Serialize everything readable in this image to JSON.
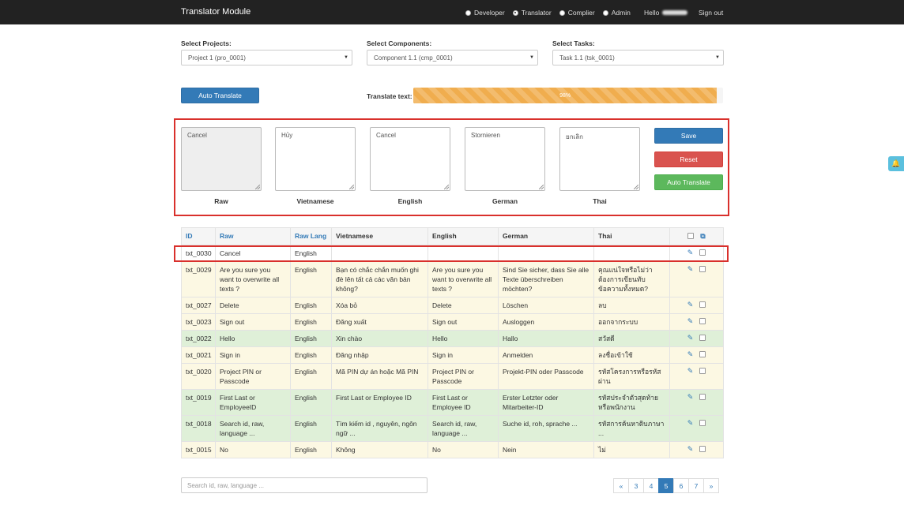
{
  "navbar": {
    "brand": "Translator Module",
    "roles": [
      {
        "label": "Developer",
        "selected": false
      },
      {
        "label": "Translator",
        "selected": true
      },
      {
        "label": "Complier",
        "selected": false
      },
      {
        "label": "Admin",
        "selected": false
      }
    ],
    "hello": "Hello",
    "signout": "Sign out"
  },
  "selects": {
    "projects": {
      "label": "Select Projects:",
      "value": "Project 1 (pro_0001)"
    },
    "components": {
      "label": "Select Components:",
      "value": "Component 1.1 (cmp_0001)"
    },
    "tasks": {
      "label": "Select Tasks:",
      "value": "Task 1.1 (tsk_0001)"
    }
  },
  "toolbar": {
    "auto_translate": "Auto Translate",
    "translate_text_label": "Translate text:",
    "progress_percent": 98,
    "progress_text": "98%"
  },
  "editor": {
    "fields": [
      {
        "name": "raw",
        "label": "Raw",
        "value": "Cancel"
      },
      {
        "name": "vietnamese",
        "label": "Vietnamese",
        "value": "Hủy"
      },
      {
        "name": "english",
        "label": "English",
        "value": "Cancel"
      },
      {
        "name": "german",
        "label": "German",
        "value": "Stornieren"
      },
      {
        "name": "thai",
        "label": "Thai",
        "value": "ยกเลิก"
      }
    ],
    "save": "Save",
    "reset": "Reset",
    "auto_translate": "Auto Translate"
  },
  "table": {
    "headers": [
      "ID",
      "Raw",
      "Raw Lang",
      "Vietnamese",
      "English",
      "German",
      "Thai"
    ],
    "rows": [
      {
        "style": "white",
        "cells": [
          "txt_0030",
          "Cancel",
          "English",
          "",
          "",
          "",
          ""
        ]
      },
      {
        "style": "yellow",
        "cells": [
          "txt_0029",
          "Are you sure you want to overwrite all texts ?",
          "English",
          "Bạn có chắc chắn muốn ghi đè lên tất cả các văn bản không?",
          "Are you sure you want to overwrite all texts ?",
          "Sind Sie sicher, dass Sie alle Texte überschreiben möchten?",
          "คุณแน่ใจหรือไม่ว่าต้องการเขียนทับข้อความทั้งหมด?"
        ]
      },
      {
        "style": "yellow",
        "cells": [
          "txt_0027",
          "Delete",
          "English",
          "Xóa bỏ",
          "Delete",
          "Löschen",
          "ลบ"
        ]
      },
      {
        "style": "yellow",
        "cells": [
          "txt_0023",
          "Sign out",
          "English",
          "Đăng xuất",
          "Sign out",
          "Ausloggen",
          "ออกจากระบบ"
        ]
      },
      {
        "style": "green",
        "cells": [
          "txt_0022",
          "Hello",
          "English",
          "Xin chào",
          "Hello",
          "Hallo",
          "สวัสดี"
        ]
      },
      {
        "style": "yellow",
        "cells": [
          "txt_0021",
          "Sign in",
          "English",
          "Đăng nhập",
          "Sign in",
          "Anmelden",
          "ลงชื่อเข้าใช้"
        ]
      },
      {
        "style": "yellow",
        "cells": [
          "txt_0020",
          "Project PIN or Passcode",
          "English",
          "Mã PIN dự án hoặc Mã PIN",
          "Project PIN or Passcode",
          "Projekt-PIN oder Passcode",
          "รหัสโครงการหรือรหัสผ่าน"
        ]
      },
      {
        "style": "green",
        "cells": [
          "txt_0019",
          "First Last or EmployeeID",
          "English",
          "First Last or Employee ID",
          "First Last or Employee ID",
          "Erster Letzter oder Mitarbeiter-ID",
          "รหัสประจำตัวสุดท้ายหรือพนักงาน"
        ]
      },
      {
        "style": "green",
        "cells": [
          "txt_0018",
          "Search id, raw, language ...",
          "English",
          "Tìm kiếm id , nguyên, ngôn ngữ ...",
          "Search id, raw, language ...",
          "Suche id, roh, sprache ...",
          "รหัสการค้นหาดิบภาษา ..."
        ]
      },
      {
        "style": "yellow",
        "cells": [
          "txt_0015",
          "No",
          "English",
          "Không",
          "No",
          "Nein",
          "ไม่"
        ]
      }
    ]
  },
  "search": {
    "placeholder": "Search id, raw, language ..."
  },
  "pagination": {
    "prev": "«",
    "pages": [
      "3",
      "4",
      "5",
      "6",
      "7"
    ],
    "active": "5",
    "next": "»"
  }
}
